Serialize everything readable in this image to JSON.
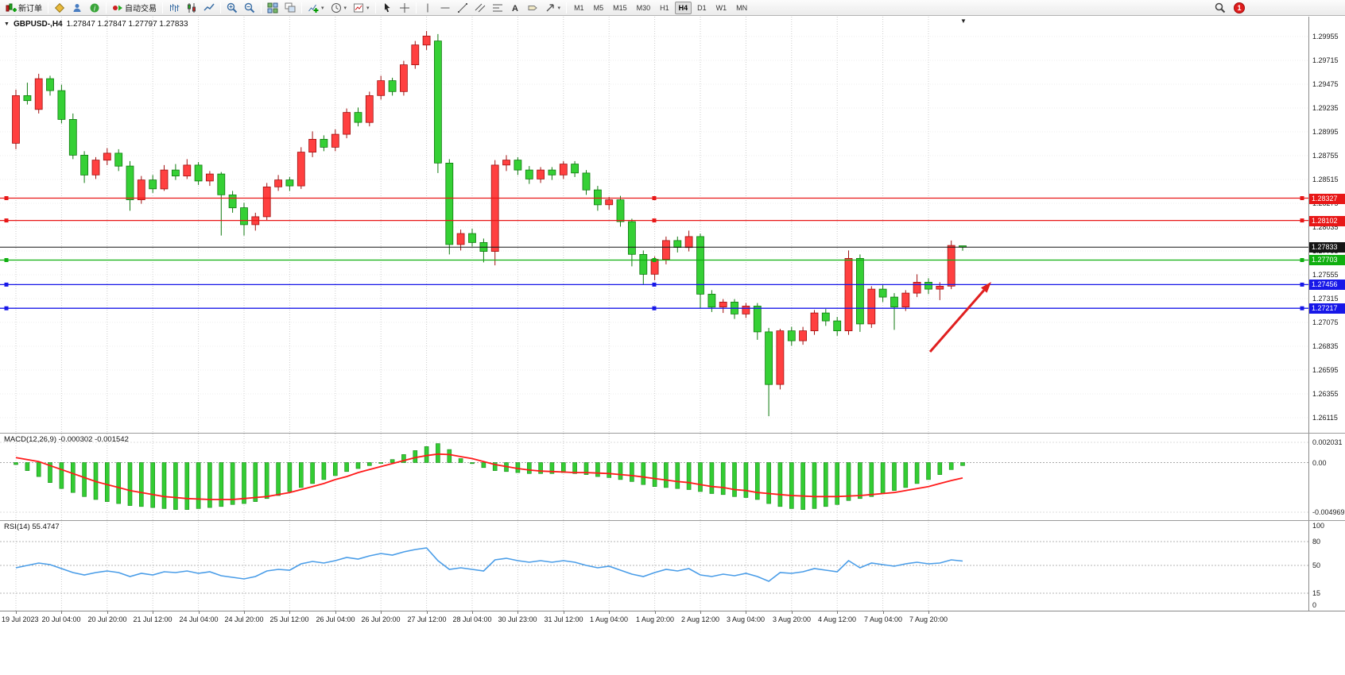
{
  "toolbar": {
    "notification_count": "1",
    "timeframes": [
      "M1",
      "M5",
      "M15",
      "M30",
      "H1",
      "H4",
      "D1",
      "W1",
      "MN"
    ],
    "active_timeframe": "H4",
    "groups": [
      {
        "items": [
          {
            "name": "new-order-button",
            "icon": "new-order",
            "label": "新订单"
          }
        ]
      },
      {
        "items": [
          {
            "name": "metaeditor-button",
            "icon": "metaeditor"
          },
          {
            "name": "profiles-button",
            "icon": "profiles"
          },
          {
            "name": "help-button",
            "icon": "help"
          }
        ]
      },
      {
        "items": [
          {
            "name": "autotrading-button",
            "icon": "autotrade",
            "label": "自动交易"
          }
        ]
      },
      {
        "items": [
          {
            "name": "chart-bars-button",
            "icon": "chart-bars"
          },
          {
            "name": "chart-candles-button",
            "icon": "chart-candles"
          },
          {
            "name": "chart-line-button",
            "icon": "chart-line"
          }
        ]
      },
      {
        "items": [
          {
            "name": "zoom-in-button",
            "icon": "zoom-in"
          },
          {
            "name": "zoom-out-button",
            "icon": "zoom-out"
          }
        ]
      },
      {
        "items": [
          {
            "name": "tile-windows-button",
            "icon": "tile-windows"
          },
          {
            "name": "cascade-windows-button",
            "icon": "cascade-windows"
          }
        ]
      },
      {
        "items": [
          {
            "name": "add-indicator-button",
            "icon": "indicators-add",
            "caret": true
          },
          {
            "name": "periods-button",
            "icon": "periods-clock",
            "caret": true
          },
          {
            "name": "templates-button",
            "icon": "templates",
            "caret": true
          }
        ]
      },
      {
        "items": [
          {
            "name": "cursor-button",
            "icon": "cursor"
          },
          {
            "name": "crosshair-button",
            "icon": "crosshair"
          }
        ]
      },
      {
        "items": [
          {
            "name": "vertical-line-button",
            "icon": "vline"
          },
          {
            "name": "horizontal-line-button",
            "icon": "hline"
          },
          {
            "name": "trendline-button",
            "icon": "trendline"
          },
          {
            "name": "channel-button",
            "icon": "channel"
          },
          {
            "name": "fibonacci-button",
            "icon": "fibonacci"
          },
          {
            "name": "text-button",
            "icon": "text"
          },
          {
            "name": "label-button",
            "icon": "label"
          },
          {
            "name": "arrows-button",
            "icon": "arrows",
            "caret": true
          }
        ]
      }
    ]
  },
  "chart": {
    "symbol_period": "GBPUSD-,H4",
    "ohlc": "1.27847 1.27847 1.27797 1.27833",
    "hlines": [
      {
        "label": "1.28327",
        "price": 1.28327,
        "color": "#e81717",
        "handles": true,
        "current": false
      },
      {
        "label": "1.28102",
        "price": 1.28102,
        "color": "#e81717",
        "handles": true,
        "current": false
      },
      {
        "label": "1.27833",
        "price": 1.27833,
        "color": "#151515",
        "handles": false,
        "current": true
      },
      {
        "label": "1.27703",
        "price": 1.27703,
        "color": "#0faf0f",
        "handles": true,
        "current": false
      },
      {
        "label": "1.27456",
        "price": 1.27456,
        "color": "#1717e8",
        "handles": true,
        "current": false
      },
      {
        "label": "1.27217",
        "price": 1.27217,
        "color": "#1717e8",
        "handles": true,
        "current": false
      }
    ],
    "macd_axis": [
      {
        "label": "0.002031",
        "value": 0.002031
      },
      {
        "label": "0.00",
        "value": 0
      },
      {
        "label": "-0.004969",
        "value": -0.004969
      }
    ],
    "rsi_axis": [
      {
        "label": "100",
        "value": 100
      },
      {
        "label": "80",
        "value": 80
      },
      {
        "label": "50",
        "value": 50
      },
      {
        "label": "15",
        "value": 15
      },
      {
        "label": "0",
        "value": 0
      }
    ],
    "annotation_arrow": {
      "color": "#e01f1f",
      "from": [
        1170,
        443
      ],
      "to": [
        1247,
        355
      ]
    }
  },
  "indicators": {
    "macd_name": "MACD(12,26,9)",
    "macd_values": "-0.000302 -0.001542",
    "rsi_name": "RSI(14)",
    "rsi_value": "55.4747"
  },
  "chart_data": {
    "type": "candlestick",
    "symbol": "GBPUSD",
    "timeframe": "H4",
    "price_axis": [
      "1.29955",
      "1.29715",
      "1.29475",
      "1.29235",
      "1.28995",
      "1.28755",
      "1.28515",
      "1.28275",
      "1.28035",
      "1.27795",
      "1.27555",
      "1.27315",
      "1.27075",
      "1.26835",
      "1.26595",
      "1.26355",
      "1.26115"
    ],
    "time_labels": [
      "19 Jul 2023",
      "20 Jul 04:00",
      "20 Jul 20:00",
      "21 Jul 12:00",
      "24 Jul 04:00",
      "24 Jul 20:00",
      "25 Jul 12:00",
      "26 Jul 04:00",
      "26 Jul 20:00",
      "27 Jul 12:00",
      "28 Jul 04:00",
      "30 Jul 23:00",
      "31 Jul 12:00",
      "1 Aug 04:00",
      "1 Aug 20:00",
      "2 Aug 12:00",
      "3 Aug 04:00",
      "3 Aug 20:00",
      "4 Aug 12:00",
      "7 Aug 04:00",
      "7 Aug 20:00"
    ],
    "candles": [
      [
        1.2888,
        1.2942,
        1.2882,
        1.2936
      ],
      [
        1.2936,
        1.2949,
        1.2927,
        1.2931
      ],
      [
        1.2922,
        1.2958,
        1.2918,
        1.2953
      ],
      [
        1.2953,
        1.2956,
        1.2936,
        1.2941
      ],
      [
        1.2941,
        1.2947,
        1.2908,
        1.2912
      ],
      [
        1.2912,
        1.2918,
        1.2872,
        1.2876
      ],
      [
        1.2876,
        1.288,
        1.2848,
        1.2856
      ],
      [
        1.2856,
        1.2874,
        1.2852,
        1.2871
      ],
      [
        1.2871,
        1.2883,
        1.2866,
        1.2878
      ],
      [
        1.2878,
        1.2882,
        1.286,
        1.2865
      ],
      [
        1.2865,
        1.287,
        1.282,
        1.2831
      ],
      [
        1.2831,
        1.2855,
        1.2827,
        1.2851
      ],
      [
        1.2851,
        1.2856,
        1.2838,
        1.2842
      ],
      [
        1.2842,
        1.2866,
        1.284,
        1.2861
      ],
      [
        1.2861,
        1.2867,
        1.2851,
        1.2855
      ],
      [
        1.2855,
        1.2872,
        1.2852,
        1.2866
      ],
      [
        1.2866,
        1.2869,
        1.2846,
        1.285
      ],
      [
        1.285,
        1.286,
        1.2845,
        1.2857
      ],
      [
        1.2857,
        1.2859,
        1.2795,
        1.2836
      ],
      [
        1.2836,
        1.284,
        1.2818,
        1.2823
      ],
      [
        1.2823,
        1.2828,
        1.2795,
        1.2806
      ],
      [
        1.2806,
        1.2818,
        1.28,
        1.2814
      ],
      [
        1.2814,
        1.2848,
        1.281,
        1.2844
      ],
      [
        1.2844,
        1.2856,
        1.284,
        1.2851
      ],
      [
        1.2851,
        1.2854,
        1.284,
        1.2845
      ],
      [
        1.2845,
        1.2884,
        1.2842,
        1.2879
      ],
      [
        1.2879,
        1.29,
        1.2874,
        1.2892
      ],
      [
        1.2892,
        1.2896,
        1.288,
        1.2884
      ],
      [
        1.2884,
        1.2902,
        1.288,
        1.2897
      ],
      [
        1.2897,
        1.2923,
        1.2893,
        1.2919
      ],
      [
        1.2919,
        1.2924,
        1.2905,
        1.2909
      ],
      [
        1.2909,
        1.294,
        1.2905,
        1.2936
      ],
      [
        1.2936,
        1.2956,
        1.2932,
        1.2951
      ],
      [
        1.2951,
        1.2954,
        1.2936,
        1.294
      ],
      [
        1.294,
        1.2971,
        1.2936,
        1.2967
      ],
      [
        1.2967,
        1.2991,
        1.2963,
        1.2987
      ],
      [
        1.2987,
        1.3001,
        1.2982,
        1.2996
      ],
      [
        1.2991,
        1.2998,
        1.2858,
        1.2868
      ],
      [
        1.2868,
        1.2872,
        1.2776,
        1.2786
      ],
      [
        1.2786,
        1.2801,
        1.278,
        1.2797
      ],
      [
        1.2797,
        1.2802,
        1.2784,
        1.2788
      ],
      [
        1.2788,
        1.2792,
        1.2768,
        1.2779
      ],
      [
        1.2779,
        1.2871,
        1.2765,
        1.2866
      ],
      [
        1.2866,
        1.2876,
        1.286,
        1.2871
      ],
      [
        1.2871,
        1.2874,
        1.2856,
        1.2861
      ],
      [
        1.2861,
        1.2865,
        1.2847,
        1.2852
      ],
      [
        1.2852,
        1.2864,
        1.2848,
        1.2861
      ],
      [
        1.2861,
        1.2864,
        1.2851,
        1.2856
      ],
      [
        1.2856,
        1.287,
        1.2852,
        1.2867
      ],
      [
        1.2867,
        1.287,
        1.2854,
        1.2858
      ],
      [
        1.2858,
        1.2861,
        1.2836,
        1.2841
      ],
      [
        1.2841,
        1.2845,
        1.282,
        1.2826
      ],
      [
        1.2826,
        1.2834,
        1.2821,
        1.2831
      ],
      [
        1.2831,
        1.2835,
        1.2804,
        1.2809
      ],
      [
        1.2809,
        1.2812,
        1.2764,
        1.2776
      ],
      [
        1.2776,
        1.278,
        1.2746,
        1.2756
      ],
      [
        1.2756,
        1.2774,
        1.275,
        1.2771
      ],
      [
        1.2771,
        1.2794,
        1.2766,
        1.279
      ],
      [
        1.279,
        1.2794,
        1.2778,
        1.2783
      ],
      [
        1.2783,
        1.28,
        1.2779,
        1.2794
      ],
      [
        1.2794,
        1.2797,
        1.2722,
        1.2736
      ],
      [
        1.2736,
        1.274,
        1.2718,
        1.2723
      ],
      [
        1.2723,
        1.2731,
        1.2717,
        1.2728
      ],
      [
        1.2728,
        1.2731,
        1.2711,
        1.2716
      ],
      [
        1.2716,
        1.2727,
        1.2712,
        1.2724
      ],
      [
        1.2724,
        1.2727,
        1.269,
        1.2698
      ],
      [
        1.2698,
        1.2702,
        1.2613,
        1.2645
      ],
      [
        1.2645,
        1.2701,
        1.264,
        1.2699
      ],
      [
        1.2699,
        1.2703,
        1.2684,
        1.2689
      ],
      [
        1.2689,
        1.2703,
        1.2685,
        1.2699
      ],
      [
        1.2699,
        1.272,
        1.2695,
        1.2717
      ],
      [
        1.2717,
        1.2721,
        1.2704,
        1.2709
      ],
      [
        1.2709,
        1.2713,
        1.2694,
        1.2699
      ],
      [
        1.2699,
        1.278,
        1.2695,
        1.2772
      ],
      [
        1.2772,
        1.2776,
        1.2698,
        1.2706
      ],
      [
        1.2706,
        1.2744,
        1.2702,
        1.2741
      ],
      [
        1.2741,
        1.2745,
        1.2728,
        1.2733
      ],
      [
        1.2733,
        1.2737,
        1.27,
        1.2723
      ],
      [
        1.2723,
        1.274,
        1.2719,
        1.2737
      ],
      [
        1.2737,
        1.2756,
        1.2733,
        1.2748
      ],
      [
        1.2748,
        1.2752,
        1.2736,
        1.2741
      ],
      [
        1.2741,
        1.2748,
        1.273,
        1.2744
      ],
      [
        1.2744,
        1.279,
        1.2741,
        1.2785
      ],
      [
        1.27847,
        1.27847,
        1.27797,
        1.27833
      ]
    ],
    "macd": {
      "histogram": [
        -0.0002,
        -0.0008,
        -0.0014,
        -0.002,
        -0.0026,
        -0.003,
        -0.0034,
        -0.0037,
        -0.0039,
        -0.0041,
        -0.0043,
        -0.0044,
        -0.0045,
        -0.0046,
        -0.0047,
        -0.0047,
        -0.0046,
        -0.0045,
        -0.0044,
        -0.0042,
        -0.0041,
        -0.0039,
        -0.0036,
        -0.0033,
        -0.0029,
        -0.0025,
        -0.0021,
        -0.0017,
        -0.0013,
        -0.0009,
        -0.0006,
        -0.0003,
        0.0,
        0.0003,
        0.0008,
        0.0012,
        0.0016,
        0.0019,
        0.0013,
        0.0004,
        -0.0001,
        -0.0005,
        -0.0008,
        -0.0009,
        -0.001,
        -0.0011,
        -0.0011,
        -0.0011,
        -0.001,
        -0.0011,
        -0.0012,
        -0.0014,
        -0.0015,
        -0.0017,
        -0.0019,
        -0.0022,
        -0.0024,
        -0.0025,
        -0.0026,
        -0.0027,
        -0.0029,
        -0.0031,
        -0.0032,
        -0.0034,
        -0.0035,
        -0.0037,
        -0.0041,
        -0.0044,
        -0.0046,
        -0.0047,
        -0.0046,
        -0.0044,
        -0.0042,
        -0.0038,
        -0.0036,
        -0.0034,
        -0.0031,
        -0.0028,
        -0.0025,
        -0.0021,
        -0.0017,
        -0.0012,
        -0.0007,
        -0.000302
      ],
      "signal": [
        0.0005,
        0.0003,
        0.0001,
        -0.0003,
        -0.0007,
        -0.0011,
        -0.0015,
        -0.0019,
        -0.0022,
        -0.0025,
        -0.0028,
        -0.003,
        -0.0032,
        -0.0034,
        -0.0035,
        -0.0036,
        -0.00365,
        -0.0037,
        -0.0037,
        -0.0037,
        -0.0036,
        -0.0035,
        -0.0034,
        -0.0032,
        -0.003,
        -0.0027,
        -0.0024,
        -0.0021,
        -0.0017,
        -0.0014,
        -0.001,
        -0.0007,
        -0.0004,
        -0.0001,
        0.0002,
        0.0005,
        0.0007,
        0.00085,
        0.0008,
        0.0006,
        0.0004,
        0.0001,
        -0.0002,
        -0.0004,
        -0.0006,
        -0.00075,
        -0.00085,
        -0.0009,
        -0.00095,
        -0.001,
        -0.001,
        -0.00105,
        -0.0011,
        -0.0012,
        -0.0013,
        -0.00145,
        -0.0016,
        -0.00175,
        -0.0019,
        -0.002,
        -0.0022,
        -0.0024,
        -0.0025,
        -0.0027,
        -0.0028,
        -0.003,
        -0.0031,
        -0.0032,
        -0.0033,
        -0.00335,
        -0.0034,
        -0.0034,
        -0.0034,
        -0.00335,
        -0.0033,
        -0.0032,
        -0.0031,
        -0.003,
        -0.0028,
        -0.0026,
        -0.0024,
        -0.0021,
        -0.0018,
        -0.001542
      ]
    },
    "rsi": [
      47,
      50,
      53,
      51,
      46,
      41,
      38,
      41,
      43,
      41,
      36,
      40,
      38,
      42,
      41,
      43,
      40,
      42,
      37,
      35,
      33,
      36,
      43,
      45,
      44,
      52,
      55,
      53,
      56,
      60,
      58,
      62,
      65,
      63,
      67,
      70,
      72,
      56,
      45,
      47,
      45,
      43,
      57,
      59,
      56,
      54,
      56,
      54,
      56,
      54,
      50,
      47,
      49,
      44,
      39,
      36,
      41,
      45,
      43,
      46,
      38,
      36,
      39,
      37,
      40,
      36,
      30,
      41,
      40,
      42,
      46,
      44,
      42,
      56,
      47,
      53,
      51,
      49,
      52,
      54,
      52,
      53,
      57,
      55.4747
    ]
  }
}
